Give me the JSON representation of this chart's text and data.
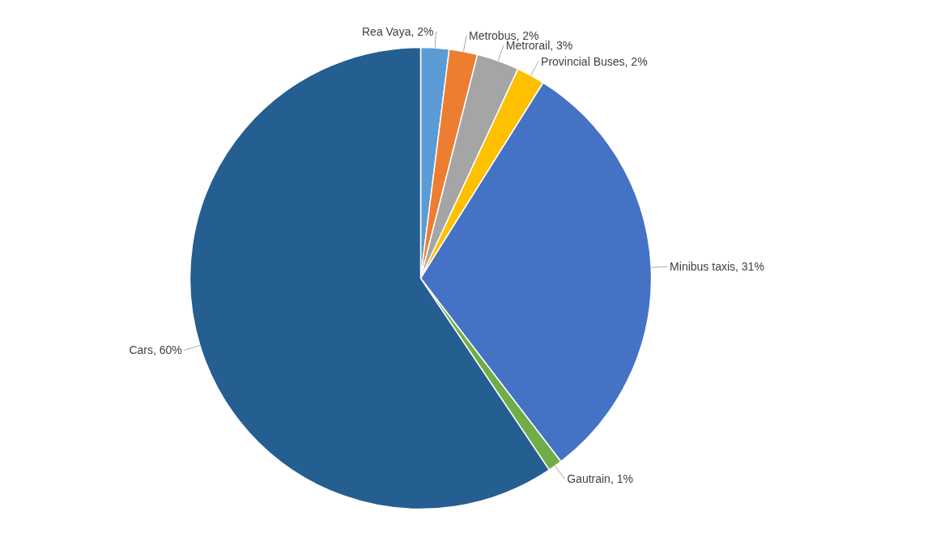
{
  "chart_data": {
    "type": "pie",
    "categories": [
      "Rea Vaya",
      "Metrobus",
      "Metrorail",
      "Provincial Buses",
      "Minibus taxis",
      "Gautrain",
      "Cars"
    ],
    "values": [
      2,
      2,
      3,
      2,
      31,
      1,
      60
    ],
    "colors": [
      "#5b9bd5",
      "#ed7d31",
      "#a5a5a5",
      "#ffc000",
      "#4472c4",
      "#70ad47",
      "#255e91"
    ],
    "value_labels": [
      "2%",
      "2%",
      "3%",
      "2%",
      "31%",
      "1%",
      "60%"
    ]
  }
}
